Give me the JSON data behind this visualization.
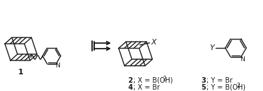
{
  "bg_color": "#ffffff",
  "fig_width": 3.77,
  "fig_height": 1.31,
  "dpi": 100,
  "line_color": "#1a1a1a",
  "label1": "1",
  "label2a": "2",
  "label2b": "; X = B(OH)",
  "label2b_sub": "2",
  "label2c": "4",
  "label2d": "; X = Br",
  "label3a": "3",
  "label3b": "; Y = Br",
  "label3c": "5",
  "label3d": "; Y = B(OH)",
  "label3d_sub": "2",
  "X_label": "X",
  "Y_label": "Y",
  "N_label": "N"
}
